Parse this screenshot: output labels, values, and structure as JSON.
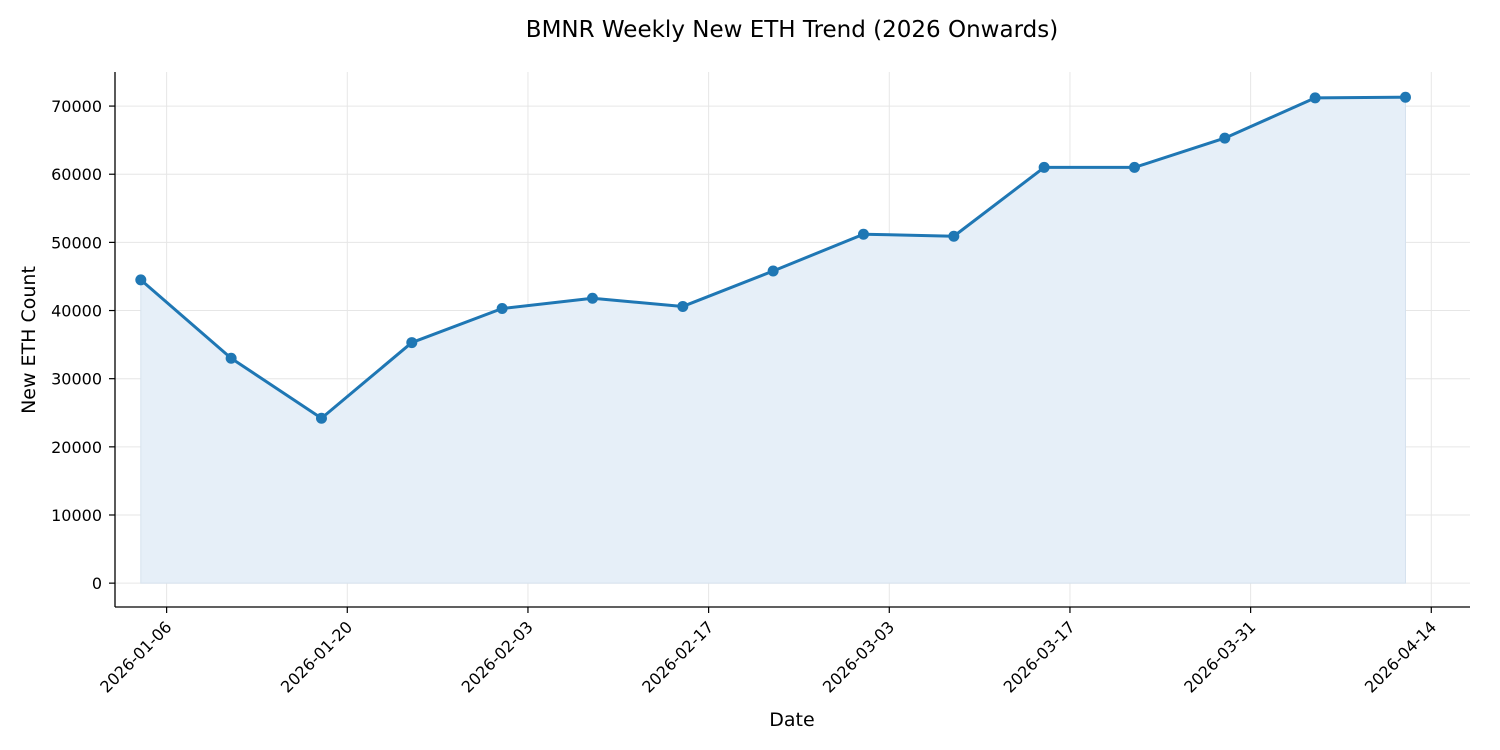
{
  "chart_data": {
    "type": "line",
    "title": "BMNR Weekly New ETH Trend (2026 Onwards)",
    "xlabel": "Date",
    "ylabel": "New ETH Count",
    "x": [
      "2026-01-04",
      "2026-01-11",
      "2026-01-18",
      "2026-01-25",
      "2026-02-01",
      "2026-02-08",
      "2026-02-15",
      "2026-02-22",
      "2026-03-01",
      "2026-03-08",
      "2026-03-15",
      "2026-03-22",
      "2026-03-29",
      "2026-04-05",
      "2026-04-12"
    ],
    "series": [
      {
        "values": [
          44500,
          33000,
          24200,
          35300,
          40300,
          41800,
          40600,
          45800,
          51200,
          50900,
          61000,
          61000,
          65300,
          71200,
          71300
        ],
        "color": "#1f77b4",
        "fill_color": "#e6eff8",
        "marker": "circle",
        "area_fill": true
      }
    ],
    "x_ticks": [
      "2026-01-06",
      "2026-01-20",
      "2026-02-03",
      "2026-02-17",
      "2026-03-03",
      "2026-03-17",
      "2026-03-31",
      "2026-04-14"
    ],
    "y_ticks": [
      "0",
      "10000",
      "20000",
      "30000",
      "40000",
      "50000",
      "60000",
      "70000"
    ],
    "xlim": [
      "2026-01-02T00:00",
      "2026-04-17T00:00"
    ],
    "ylim": [
      -3500,
      75000
    ],
    "grid": true,
    "x_tick_rotation": 45
  }
}
